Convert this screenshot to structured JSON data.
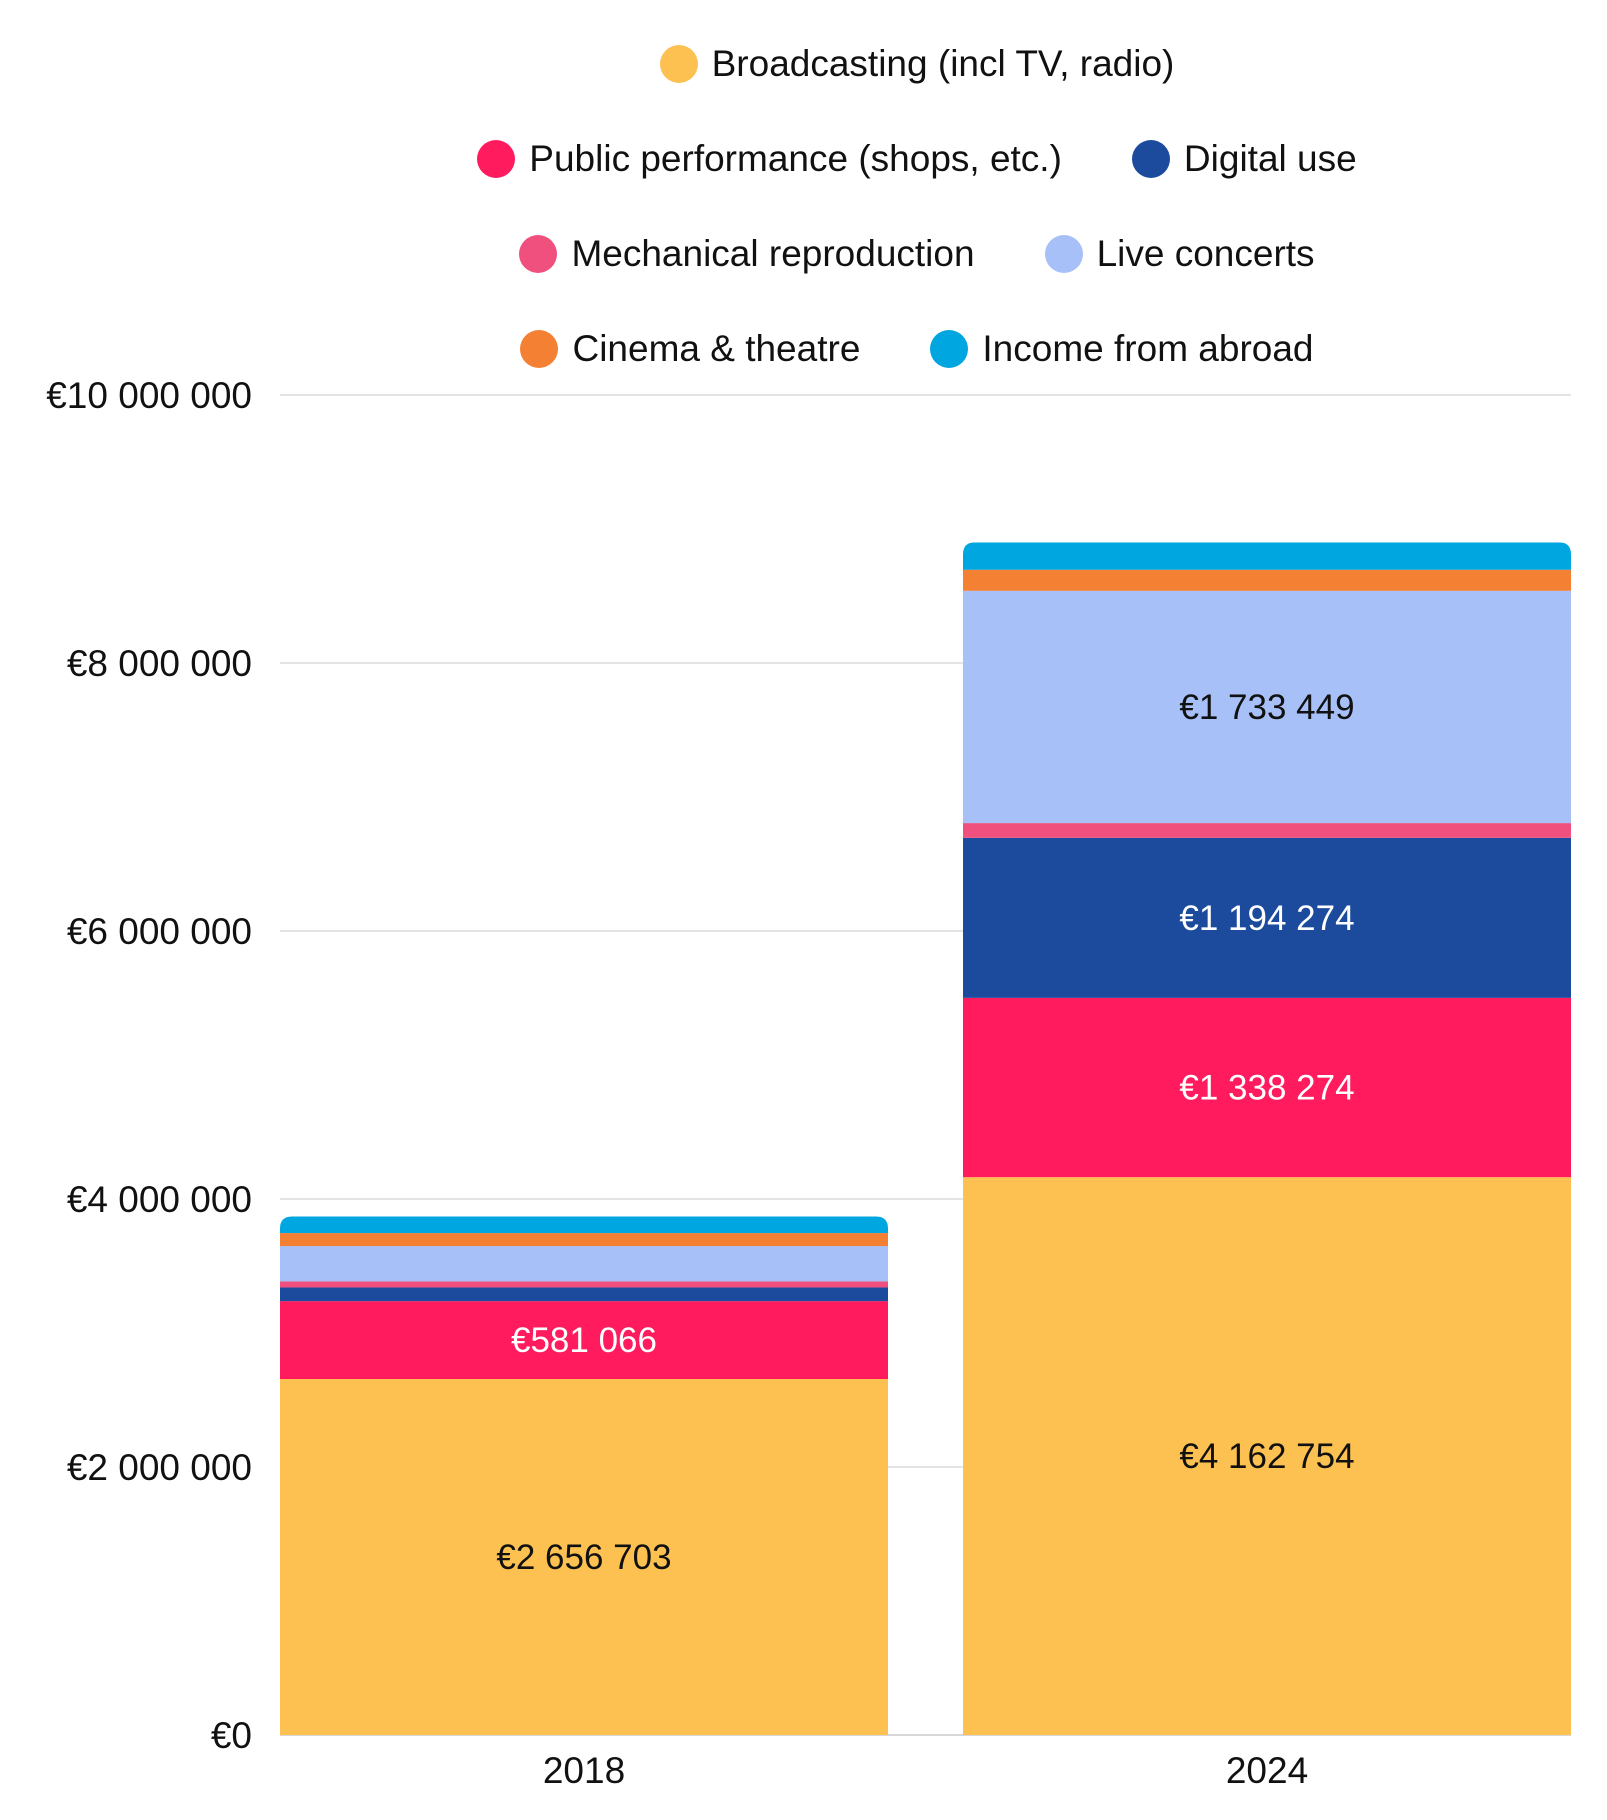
{
  "chart_data": {
    "type": "bar",
    "stacked": true,
    "categories": [
      "2018",
      "2024"
    ],
    "ylim": [
      0,
      10000000
    ],
    "yticks": [
      0,
      2000000,
      4000000,
      6000000,
      8000000,
      10000000
    ],
    "ytick_labels": [
      "€0",
      "€2 000 000",
      "€4 000 000",
      "€6 000 000",
      "€8 000 000",
      "€10 000 000"
    ],
    "grid": true,
    "legend_position": "top",
    "series": [
      {
        "name": "Broadcasting (incl TV, radio)",
        "color": "#FDC152",
        "label_color": "#111111",
        "values": [
          2656703,
          4162754
        ],
        "labels": [
          "€2 656 703",
          "€4 162 754"
        ]
      },
      {
        "name": "Public performance (shops, etc.)",
        "color": "#FF1B5E",
        "label_color": "#ffffff",
        "values": [
          581066,
          1338274
        ],
        "labels": [
          "€581 066",
          "€1 338 274"
        ]
      },
      {
        "name": "Digital use",
        "color": "#1C4B9E",
        "label_color": "#ffffff",
        "values": [
          102000,
          1194274
        ],
        "labels": [
          "",
          "€1 194 274"
        ]
      },
      {
        "name": "Mechanical reproduction",
        "color": "#F0507E",
        "label_color": "#ffffff",
        "values": [
          45000,
          110000
        ],
        "labels": [
          "",
          ""
        ]
      },
      {
        "name": "Live concerts",
        "color": "#A7C0F8",
        "label_color": "#111111",
        "values": [
          264000,
          1733449
        ],
        "labels": [
          "",
          "€1 733 449"
        ]
      },
      {
        "name": "Cinema & theatre",
        "color": "#F38033",
        "label_color": "#111111",
        "values": [
          97000,
          157000
        ],
        "labels": [
          "",
          ""
        ]
      },
      {
        "name": "Income from abroad",
        "color": "#00A6E0",
        "label_color": "#111111",
        "values": [
          124000,
          204000
        ],
        "labels": [
          "",
          ""
        ]
      }
    ]
  }
}
